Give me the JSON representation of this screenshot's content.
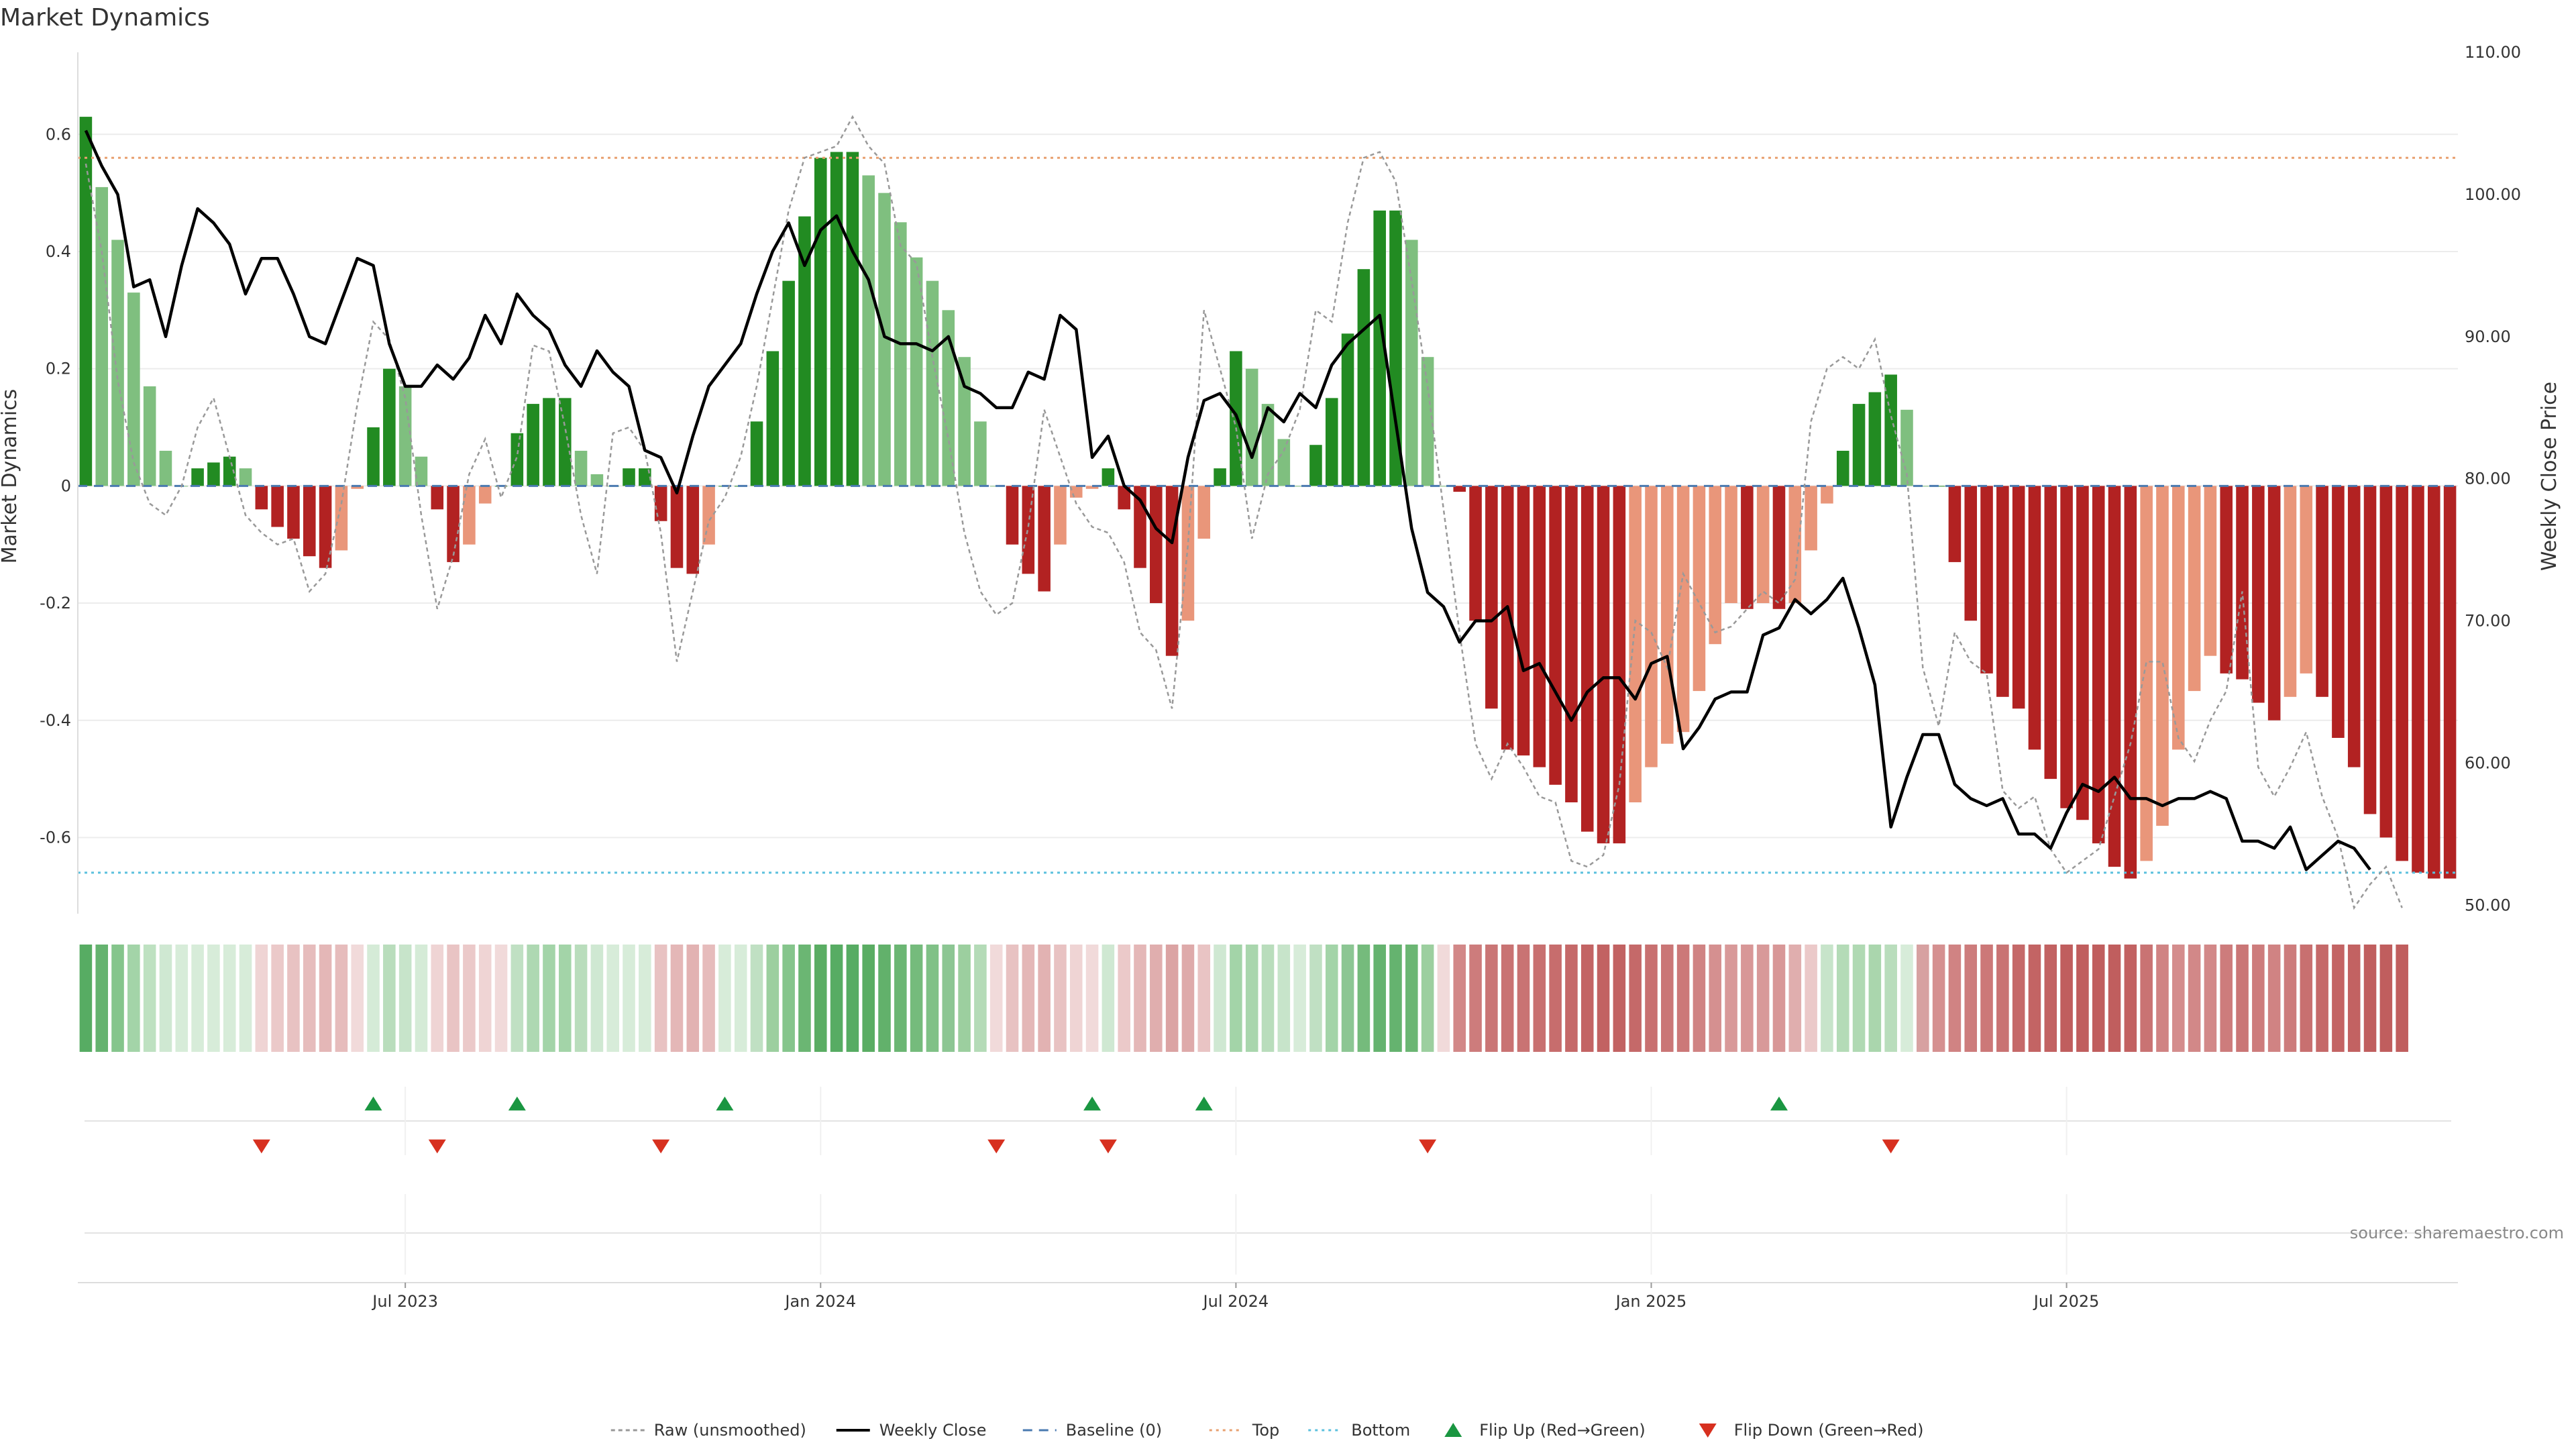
{
  "chart_data": {
    "type": "bar",
    "title": "Market Dynamics",
    "ylabel": "Market Dynamics",
    "y2label": "Weekly Close Price",
    "ylim": [
      -0.73,
      0.74
    ],
    "y2lim": [
      49.4,
      110.0
    ],
    "yticks": [
      "0.6",
      "0.4",
      "0.2",
      "0",
      "-0.2",
      "-0.4",
      "-0.6"
    ],
    "yticks_values": [
      0.6,
      0.4,
      0.2,
      0,
      -0.2,
      -0.4,
      -0.6
    ],
    "y2ticks": [
      "110.00",
      "100.00",
      "90.00",
      "80.00",
      "70.00",
      "60.00",
      "50.00"
    ],
    "y2ticks_values": [
      110,
      100,
      90,
      80,
      70,
      60,
      50
    ],
    "xticks": [
      "Jul 2023",
      "Jan 2024",
      "Jul 2024",
      "Jan 2025",
      "Jul 2025"
    ],
    "xticks_week_index": [
      20,
      46,
      72,
      98,
      124
    ],
    "top_level": 0.56,
    "bottom_level": -0.66,
    "baseline": 0,
    "grid": true,
    "legend_placement": "bottom-center",
    "source": "source: sharemaestro.com",
    "colors": {
      "strong_green": "#228b22",
      "light_green": "#7fbf7f",
      "strong_red": "#b22222",
      "light_red": "#e9967a",
      "weekly_close": "#000000",
      "raw": "#999999",
      "baseline": "#4a7ab0",
      "top": "#e8a070",
      "bottom": "#5bc0de",
      "flip_up": "#1a9641",
      "flip_down": "#d7301f"
    },
    "series": [
      {
        "name": "Market Dynamics",
        "values": [
          0.63,
          0.51,
          0.42,
          0.33,
          0.17,
          0.06,
          0.0,
          0.03,
          0.04,
          0.05,
          0.03,
          -0.04,
          -0.07,
          -0.09,
          -0.12,
          -0.14,
          -0.11,
          -0.005,
          0.1,
          0.2,
          0.17,
          0.05,
          -0.04,
          -0.13,
          -0.1,
          -0.03,
          0.0,
          0.09,
          0.14,
          0.15,
          0.15,
          0.06,
          0.02,
          0.0,
          0.03,
          0.03,
          -0.06,
          -0.14,
          -0.15,
          -0.1,
          0.0,
          0.0,
          0.11,
          0.23,
          0.35,
          0.46,
          0.56,
          0.57,
          0.57,
          0.53,
          0.5,
          0.45,
          0.39,
          0.35,
          0.3,
          0.22,
          0.11,
          0.0,
          -0.1,
          -0.15,
          -0.18,
          -0.1,
          -0.02,
          -0.005,
          0.03,
          -0.04,
          -0.14,
          -0.2,
          -0.29,
          -0.23,
          -0.09,
          0.03,
          0.23,
          0.2,
          0.14,
          0.08,
          0.0,
          0.07,
          0.15,
          0.26,
          0.37,
          0.47,
          0.47,
          0.42,
          0.22,
          0.0,
          -0.01,
          -0.23,
          -0.38,
          -0.45,
          -0.46,
          -0.48,
          -0.51,
          -0.54,
          -0.59,
          -0.61,
          -0.61,
          -0.54,
          -0.48,
          -0.44,
          -0.42,
          -0.35,
          -0.27,
          -0.2,
          -0.21,
          -0.2,
          -0.21,
          -0.2,
          -0.11,
          -0.03,
          0.06,
          0.14,
          0.16,
          0.19,
          0.13,
          0.0,
          0.0,
          -0.13,
          -0.23,
          -0.32,
          -0.36,
          -0.38,
          -0.45,
          -0.5,
          -0.55,
          -0.57,
          -0.61,
          -0.65,
          -0.67,
          -0.64,
          -0.58,
          -0.45,
          -0.35,
          -0.29,
          -0.32,
          -0.33,
          -0.37,
          -0.4,
          -0.36,
          -0.32,
          -0.36,
          -0.43,
          -0.48,
          -0.56,
          -0.6,
          -0.64,
          -0.66,
          -0.67,
          -0.67
        ]
      },
      {
        "name": "Raw (unsmoothed)",
        "values": [
          0.55,
          0.4,
          0.18,
          0.04,
          -0.03,
          -0.05,
          0.0,
          0.1,
          0.15,
          0.05,
          -0.05,
          -0.08,
          -0.1,
          -0.09,
          -0.18,
          -0.15,
          -0.03,
          0.14,
          0.28,
          0.25,
          0.15,
          -0.05,
          -0.21,
          -0.12,
          0.02,
          0.08,
          -0.02,
          0.05,
          0.24,
          0.23,
          0.1,
          -0.05,
          -0.15,
          0.09,
          0.1,
          0.06,
          -0.08,
          -0.3,
          -0.18,
          -0.06,
          -0.02,
          0.05,
          0.17,
          0.32,
          0.47,
          0.56,
          0.57,
          0.58,
          0.63,
          0.58,
          0.55,
          0.41,
          0.38,
          0.22,
          0.08,
          -0.08,
          -0.18,
          -0.22,
          -0.2,
          -0.07,
          0.13,
          0.05,
          -0.03,
          -0.07,
          -0.08,
          -0.13,
          -0.25,
          -0.28,
          -0.38,
          -0.1,
          0.3,
          0.2,
          0.1,
          -0.09,
          0.02,
          0.06,
          0.13,
          0.3,
          0.28,
          0.45,
          0.56,
          0.57,
          0.52,
          0.35,
          0.17,
          -0.04,
          -0.25,
          -0.44,
          -0.5,
          -0.44,
          -0.48,
          -0.53,
          -0.54,
          -0.64,
          -0.65,
          -0.63,
          -0.51,
          -0.23,
          -0.25,
          -0.31,
          -0.15,
          -0.2,
          -0.25,
          -0.24,
          -0.21,
          -0.18,
          -0.2,
          -0.16,
          0.11,
          0.2,
          0.22,
          0.2,
          0.25,
          0.12,
          0.02,
          -0.31,
          -0.41,
          -0.25,
          -0.3,
          -0.32,
          -0.52,
          -0.55,
          -0.53,
          -0.62,
          -0.66,
          -0.64,
          -0.62,
          -0.53,
          -0.44,
          -0.3,
          -0.3,
          -0.43,
          -0.47,
          -0.4,
          -0.35,
          -0.18,
          -0.48,
          -0.53,
          -0.48,
          -0.42,
          -0.53,
          -0.6,
          -0.72,
          -0.68,
          -0.65,
          -0.72
        ]
      },
      {
        "name": "Weekly Close",
        "axis": "right",
        "values": [
          104.5,
          102.0,
          100.0,
          93.5,
          94.0,
          90.0,
          95.0,
          99.0,
          98.0,
          96.5,
          93.0,
          95.5,
          95.5,
          93.0,
          90.0,
          89.5,
          92.5,
          95.5,
          95.0,
          89.5,
          86.5,
          86.5,
          88.0,
          87.0,
          88.5,
          91.5,
          89.5,
          93.0,
          91.5,
          90.5,
          88.0,
          86.5,
          89.0,
          87.5,
          86.5,
          82.0,
          81.5,
          79.0,
          83.0,
          86.5,
          88.0,
          89.5,
          93.0,
          96.0,
          98.0,
          95.0,
          97.5,
          98.5,
          96.0,
          94.0,
          90.0,
          89.5,
          89.5,
          89.0,
          90.0,
          86.5,
          86.0,
          85.0,
          85.0,
          87.5,
          87.0,
          91.5,
          90.5,
          81.5,
          83.0,
          79.5,
          78.5,
          76.5,
          75.5,
          81.5,
          85.5,
          86.0,
          84.5,
          81.5,
          85.0,
          84.0,
          86.0,
          85.0,
          88.0,
          89.5,
          90.5,
          91.5,
          84.0,
          76.5,
          72.0,
          71.0,
          68.5,
          70.0,
          70.0,
          71.0,
          66.5,
          67.0,
          65.0,
          63.0,
          65.0,
          66.0,
          66.0,
          64.5,
          67.0,
          67.5,
          61.0,
          62.5,
          64.5,
          65.0,
          65.0,
          69.0,
          69.5,
          71.5,
          70.5,
          71.5,
          73.0,
          69.5,
          65.5,
          55.5,
          59.0,
          62.0,
          62.0,
          58.5,
          57.5,
          57.0,
          57.5,
          55.0,
          55.0,
          54.0,
          56.5,
          58.5,
          58.0,
          59.0,
          57.5,
          57.5,
          57.0,
          57.5,
          57.5,
          58.0,
          57.5,
          54.5,
          54.5,
          54.0,
          55.5,
          52.5,
          53.5,
          54.5,
          54.0,
          52.5
        ]
      }
    ],
    "state_strip": {
      "colors": [
        "#57ac63",
        "#65b36f",
        "#85c58c",
        "#a3d4a8",
        "#bee1c1",
        "#cfe8d2",
        "#d7ecd9",
        "#d7ecd9",
        "#d7ecd9",
        "#d7ecd9",
        "#d7ecd9",
        "#efd4d4",
        "#ebc9c9",
        "#e8c2c2",
        "#e6bcbc",
        "#e4b7b7",
        "#e6bcbc",
        "#f1dada",
        "#d5ebd7",
        "#b9ddbc",
        "#c7e4ca",
        "#d5ebd7",
        "#efd4d4",
        "#e9c4c4",
        "#ebc9c9",
        "#efd4d4",
        "#f1dada",
        "#c0e0c3",
        "#aed8b2",
        "#a3d4a8",
        "#a3d4a8",
        "#b9ddbc",
        "#cfe8d2",
        "#d7ecd9",
        "#d7ecd9",
        "#d7ecd9",
        "#e8c2c2",
        "#e4b7b7",
        "#e2b2b2",
        "#e6bcbc",
        "#d7ecd9",
        "#d7ecd9",
        "#c0e0c3",
        "#9ccf9f",
        "#85c58c",
        "#6bb673",
        "#5aad63",
        "#57ac63",
        "#57ac63",
        "#5aad63",
        "#62b16b",
        "#6bb673",
        "#75bb7c",
        "#80c187",
        "#8cc693",
        "#9ccf9f",
        "#b4dbb7",
        "#f1dada",
        "#e8c2c2",
        "#e4b7b7",
        "#e2b2b2",
        "#e8c2c2",
        "#efd4d4",
        "#f1dada",
        "#cfe8d2",
        "#ebc9c9",
        "#e4b7b7",
        "#e0aeae",
        "#dba3a3",
        "#deaaaa",
        "#e9c4c4",
        "#cfe8d2",
        "#a3d4a8",
        "#a9d6ad",
        "#b9ddbc",
        "#c7e4ca",
        "#d7ecd9",
        "#c0e0c3",
        "#a3d4a8",
        "#8cc693",
        "#75bb7c",
        "#65b36f",
        "#65b36f",
        "#6bb673",
        "#9ccf9f",
        "#f1dada",
        "#d28888",
        "#cd7c7c",
        "#ca7676",
        "#c97373",
        "#c97373",
        "#c87070",
        "#c76d6d",
        "#c56969",
        "#c36464",
        "#c26262",
        "#c26262",
        "#c56969",
        "#c87070",
        "#ca7676",
        "#cc7878",
        "#d08383",
        "#d59090",
        "#d89999",
        "#d89797",
        "#d89999",
        "#d89797",
        "#e0aeae",
        "#ebc9c9",
        "#c7e4ca",
        "#b4dbb7",
        "#b0d9b3",
        "#aad6ad",
        "#b9ddbc",
        "#d7ecd9",
        "#d7a1a1",
        "#d59090",
        "#d08383",
        "#cd7c7c",
        "#cc7878",
        "#c97373",
        "#c56969",
        "#c36464",
        "#c26262",
        "#c05e5e",
        "#c05e5e",
        "#c05e5e",
        "#c05e5e",
        "#c26262",
        "#c97373",
        "#d08383",
        "#d48d8d",
        "#d28888",
        "#d28888",
        "#cd7c7c",
        "#ca7676",
        "#cd7c7c",
        "#d08383",
        "#cd7c7c",
        "#c87070",
        "#c56969",
        "#c36464",
        "#c26262",
        "#c05e5e",
        "#c05e5e",
        "#c05e5e"
      ]
    },
    "flips_up_week_index": [
      18,
      27,
      40,
      63,
      70,
      106
    ],
    "flips_down_week_index": [
      11,
      22,
      36,
      57,
      64,
      84,
      113
    ]
  },
  "legend": [
    {
      "key": "raw",
      "label": "Raw (unsmoothed)"
    },
    {
      "key": "close",
      "label": "Weekly Close"
    },
    {
      "key": "baseline",
      "label": "Baseline (0)"
    },
    {
      "key": "top",
      "label": "Top"
    },
    {
      "key": "bottom",
      "label": "Bottom"
    },
    {
      "key": "flipup",
      "label": "Flip Up (Red→Green)"
    },
    {
      "key": "flipdown",
      "label": "Flip Down (Green→Red)"
    }
  ]
}
